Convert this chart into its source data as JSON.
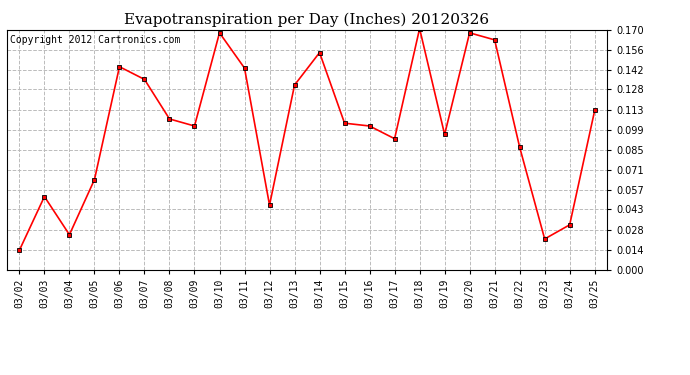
{
  "title": "Evapotranspiration per Day (Inches) 20120326",
  "copyright_text": "Copyright 2012 Cartronics.com",
  "dates": [
    "03/02",
    "03/03",
    "03/04",
    "03/05",
    "03/06",
    "03/07",
    "03/08",
    "03/09",
    "03/10",
    "03/11",
    "03/12",
    "03/13",
    "03/14",
    "03/15",
    "03/16",
    "03/17",
    "03/18",
    "03/19",
    "03/20",
    "03/21",
    "03/22",
    "03/23",
    "03/24",
    "03/25"
  ],
  "values": [
    0.014,
    0.052,
    0.025,
    0.064,
    0.144,
    0.135,
    0.107,
    0.102,
    0.168,
    0.143,
    0.046,
    0.131,
    0.154,
    0.104,
    0.102,
    0.093,
    0.171,
    0.096,
    0.168,
    0.163,
    0.087,
    0.022,
    0.032,
    0.113
  ],
  "line_color": "#ff0000",
  "marker": "s",
  "marker_size": 3,
  "marker_color": "#000000",
  "background_color": "#ffffff",
  "grid_color": "#bbbbbb",
  "ylim": [
    0.0,
    0.17
  ],
  "yticks": [
    0.0,
    0.014,
    0.028,
    0.043,
    0.057,
    0.071,
    0.085,
    0.099,
    0.113,
    0.128,
    0.142,
    0.156,
    0.17
  ],
  "title_fontsize": 11,
  "tick_fontsize": 7,
  "copyright_fontsize": 7
}
